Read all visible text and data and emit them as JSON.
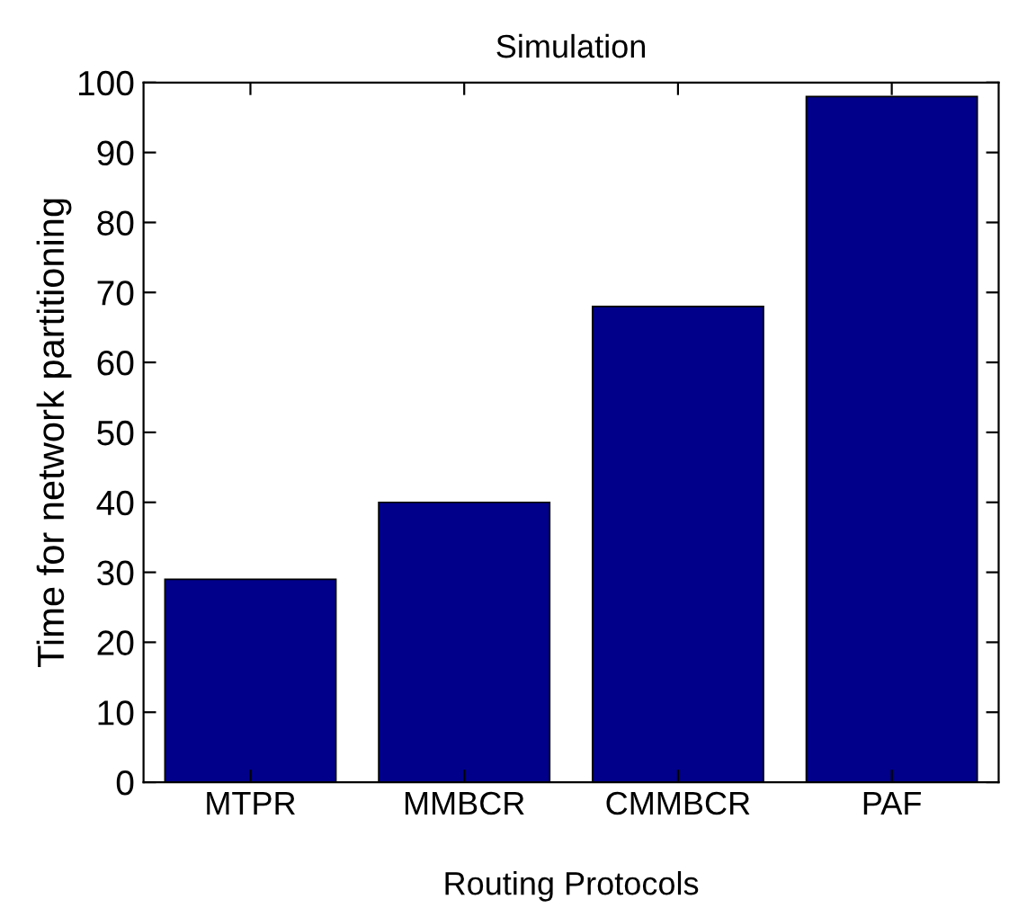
{
  "chart_data": {
    "type": "bar",
    "title": "Simulation",
    "xlabel": "Routing Protocols",
    "ylabel": "Time for network partitioning",
    "categories": [
      "MTPR",
      "MMBCR",
      "CMMBCR",
      "PAF"
    ],
    "values": [
      29,
      40,
      68,
      98
    ],
    "color": "#00008b",
    "ylim": [
      0,
      100
    ],
    "yticks": [
      0,
      10,
      20,
      30,
      40,
      50,
      60,
      70,
      80,
      90,
      100
    ],
    "grid": false
  }
}
